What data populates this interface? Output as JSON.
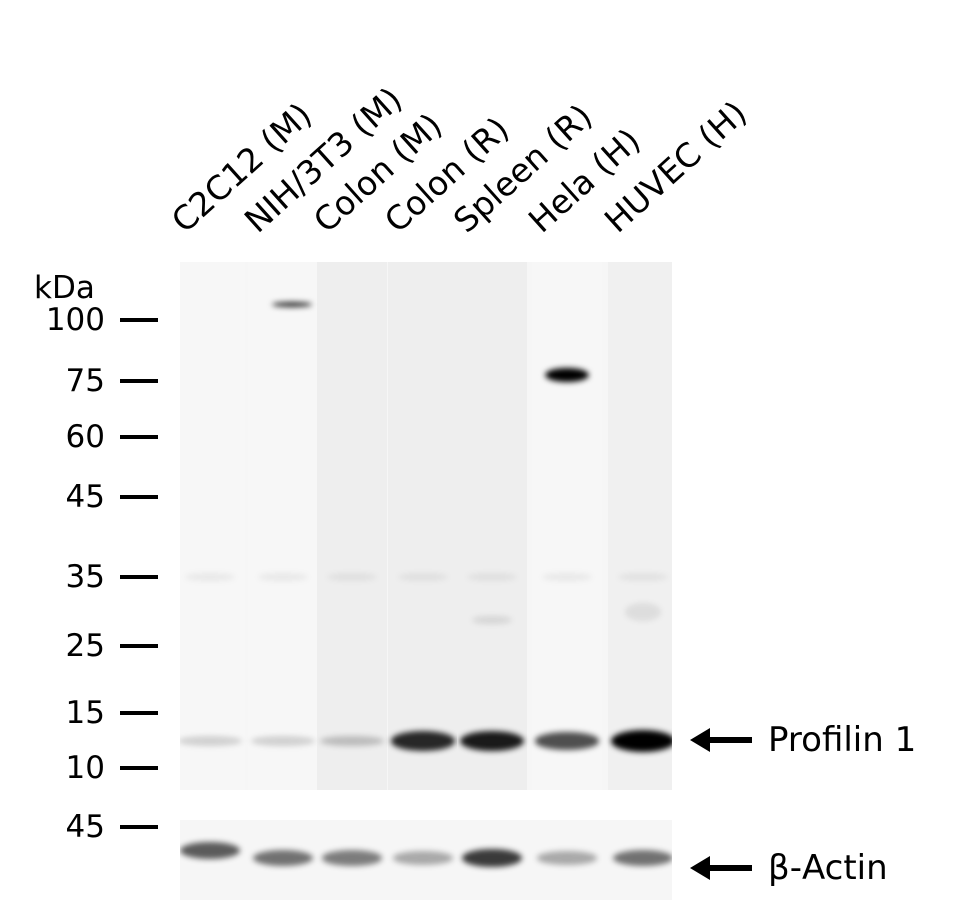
{
  "lanes": [
    "C2C12 (M)",
    "NIH/3T3 (M)",
    "Colon (M)",
    "Colon (R)",
    "Spleen (R)",
    "Hela (H)",
    "HUVEC (H)"
  ],
  "unit_label": "kDa",
  "markers_main": [
    "100",
    "75",
    "60",
    "45",
    "35",
    "25",
    "15",
    "10"
  ],
  "markers_loading": [
    "45"
  ],
  "targets": {
    "main": "Profilin 1",
    "loading": "β-Actin"
  },
  "band_intensity": {
    "profilin_1": [
      0.15,
      0.15,
      0.2,
      0.8,
      0.85,
      0.65,
      1.0
    ],
    "beta_actin": [
      0.7,
      0.6,
      0.55,
      0.35,
      0.85,
      0.35,
      0.6
    ]
  },
  "nonspecific_75kDa_band_lane": "Hela (H)"
}
